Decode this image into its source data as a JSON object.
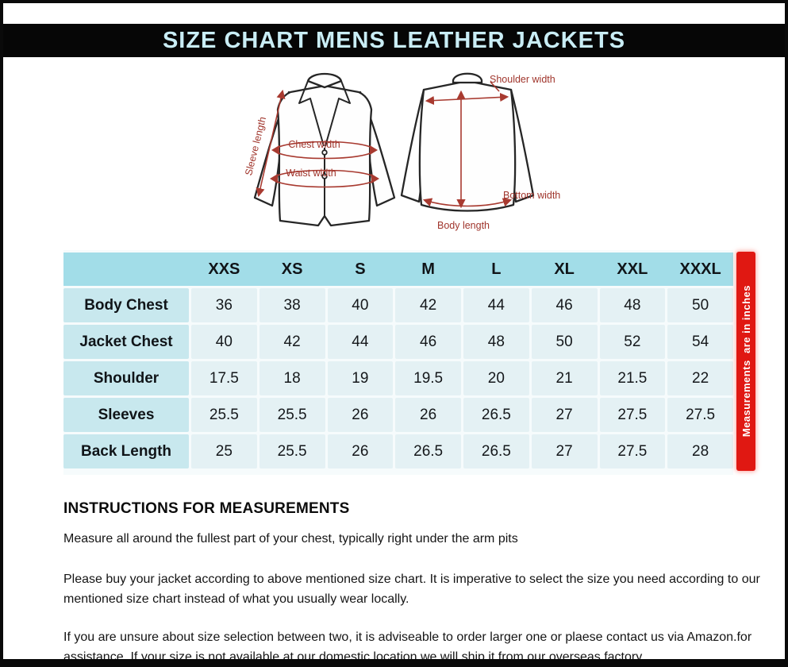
{
  "title": "SIZE CHART MENS LEATHER JACKETS",
  "diagram": {
    "front": {
      "sleeve_length_label": "Sleeve length",
      "chest_width_label": "Chest width",
      "waist_width_label": "Waist width"
    },
    "back": {
      "shoulder_width_label": "Shoulder width",
      "bottom_width_label": "Bottom width",
      "body_length_label": "Body length"
    }
  },
  "size_table": {
    "columns": [
      "XXS",
      "XS",
      "S",
      "M",
      "L",
      "XL",
      "XXL",
      "XXXL"
    ],
    "rows": [
      {
        "label": "Body Chest",
        "values": [
          "36",
          "38",
          "40",
          "42",
          "44",
          "46",
          "48",
          "50"
        ]
      },
      {
        "label": "Jacket Chest",
        "values": [
          "40",
          "42",
          "44",
          "46",
          "48",
          "50",
          "52",
          "54"
        ]
      },
      {
        "label": "Shoulder",
        "values": [
          "17.5",
          "18",
          "19",
          "19.5",
          "20",
          "21",
          "21.5",
          "22"
        ]
      },
      {
        "label": "Sleeves",
        "values": [
          "25.5",
          "25.5",
          "26",
          "26",
          "26.5",
          "27",
          "27.5",
          "27.5"
        ]
      },
      {
        "label": "Back Length",
        "values": [
          "25",
          "25.5",
          "26",
          "26.5",
          "26.5",
          "27",
          "27.5",
          "28"
        ]
      }
    ],
    "unit_note": "Measurements  are in inches"
  },
  "instructions": {
    "heading": "INSTRUCTIONS FOR MEASUREMENTS",
    "paragraphs": [
      "Measure all around the fullest part of your chest, typically right under the arm pits",
      "Please buy your jacket according to above mentioned size chart. It is imperative to select the size you need according to our mentioned size chart instead of what you  usually wear locally.",
      "If you are unsure about size selection between two, it is adviseable to order larger one or plaese contact us via Amazon.for assistance. If your size is not available at our domestic location we will ship it from our overseas factory."
    ]
  },
  "colors": {
    "title_bar_bg": "#060606",
    "title_text": "#c9edf5",
    "table_header_bg": "#a2dde8",
    "table_label_bg": "#c8e8ee",
    "table_cell_bg": "#e4f1f4",
    "unit_bar_red": "#e01812",
    "annotation_red": "#a83a30"
  }
}
